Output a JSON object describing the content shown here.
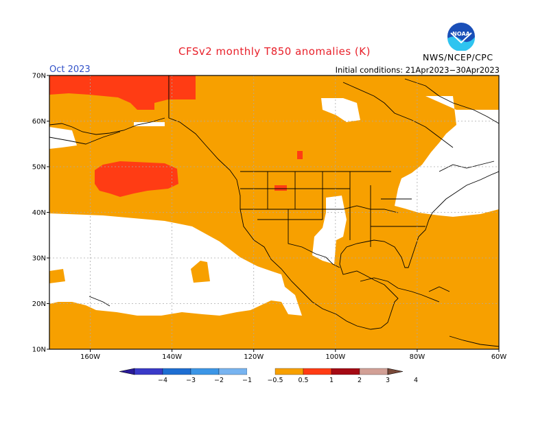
{
  "header": {
    "title": "CFSv2 monthly T850 anomalies (K)",
    "month": "Oct 2023",
    "initial_conditions": "Initial conditions: 21Apr2023−30Apr2023",
    "organization": "NWS/NCEP/CPC",
    "logo_text": "NOAA"
  },
  "map": {
    "lon_labels": [
      "160W",
      "140W",
      "120W",
      "100W",
      "80W",
      "60W"
    ],
    "lat_labels": [
      "70N",
      "60N",
      "50N",
      "40N",
      "30N",
      "20N",
      "10N"
    ],
    "lon_range": [
      -170,
      -60
    ],
    "lat_range": [
      10,
      70
    ]
  },
  "colorbar": {
    "labels": [
      "−4",
      "−3",
      "−2",
      "−1",
      "−0.5",
      "0.5",
      "1",
      "2",
      "3",
      "4"
    ],
    "colors": [
      "#2a1a9a",
      "#3a3ac8",
      "#1e6ed2",
      "#3c96e6",
      "#78b4f0",
      "#ffffff",
      "#f7a000",
      "#ff3c14",
      "#a50a14",
      "#d2a096",
      "#7a4a3a"
    ]
  },
  "colors": {
    "orange": "#f7a000",
    "red": "#ff3c14",
    "white": "#ffffff"
  }
}
